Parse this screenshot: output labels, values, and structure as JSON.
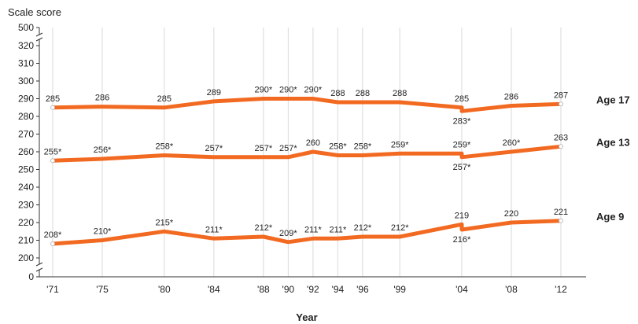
{
  "chart_data": {
    "type": "line",
    "title": "",
    "ylabel": "Scale score",
    "xlabel": "Year",
    "grid": "vertical",
    "y_axis": {
      "ticks": [
        "0",
        "200",
        "210",
        "220",
        "230",
        "240",
        "250",
        "260",
        "270",
        "280",
        "290",
        "300",
        "310",
        "320",
        "500"
      ],
      "break": "between 0 and 200, and between 320 and 500",
      "range": [
        200,
        320
      ]
    },
    "categories": [
      "'71",
      "'75",
      "'80",
      "'84",
      "'88",
      "'90",
      "'92",
      "'94",
      "'96",
      "'99",
      "'04",
      "'08",
      "'12"
    ],
    "series": [
      {
        "name": "Age 17",
        "points": [
          {
            "x": 1971,
            "y": 285,
            "label": "285"
          },
          {
            "x": 1975,
            "y": 285.5,
            "label": "286"
          },
          {
            "x": 1980,
            "y": 285,
            "label": "285"
          },
          {
            "x": 1984,
            "y": 288.5,
            "label": "289"
          },
          {
            "x": 1988,
            "y": 290,
            "label": "290*"
          },
          {
            "x": 1990,
            "y": 290,
            "label": "290*"
          },
          {
            "x": 1992,
            "y": 290,
            "label": "290*"
          },
          {
            "x": 1994,
            "y": 288,
            "label": "288"
          },
          {
            "x": 1996,
            "y": 288,
            "label": "288"
          },
          {
            "x": 1999,
            "y": 288,
            "label": "288"
          },
          {
            "x": 2004,
            "y": 285,
            "label": "285"
          },
          {
            "x": 2004,
            "y": 283,
            "label": "283*"
          },
          {
            "x": 2008,
            "y": 286,
            "label": "286"
          },
          {
            "x": 2012,
            "y": 287,
            "label": "287"
          }
        ]
      },
      {
        "name": "Age 13",
        "points": [
          {
            "x": 1971,
            "y": 255,
            "label": "255*"
          },
          {
            "x": 1975,
            "y": 256,
            "label": "256*"
          },
          {
            "x": 1980,
            "y": 258,
            "label": "258*"
          },
          {
            "x": 1984,
            "y": 257,
            "label": "257*"
          },
          {
            "x": 1988,
            "y": 257,
            "label": "257*"
          },
          {
            "x": 1990,
            "y": 257,
            "label": "257*"
          },
          {
            "x": 1992,
            "y": 260,
            "label": "260"
          },
          {
            "x": 1994,
            "y": 258,
            "label": "258*"
          },
          {
            "x": 1996,
            "y": 258,
            "label": "258*"
          },
          {
            "x": 1999,
            "y": 259,
            "label": "259*"
          },
          {
            "x": 2004,
            "y": 259,
            "label": "259*"
          },
          {
            "x": 2004,
            "y": 257,
            "label": "257*"
          },
          {
            "x": 2008,
            "y": 260,
            "label": "260*"
          },
          {
            "x": 2012,
            "y": 263,
            "label": "263"
          }
        ]
      },
      {
        "name": "Age 9",
        "points": [
          {
            "x": 1971,
            "y": 208,
            "label": "208*"
          },
          {
            "x": 1975,
            "y": 210,
            "label": "210*"
          },
          {
            "x": 1980,
            "y": 215,
            "label": "215*"
          },
          {
            "x": 1984,
            "y": 211,
            "label": "211*"
          },
          {
            "x": 1988,
            "y": 212,
            "label": "212*"
          },
          {
            "x": 1990,
            "y": 209,
            "label": "209*"
          },
          {
            "x": 1992,
            "y": 211,
            "label": "211*"
          },
          {
            "x": 1994,
            "y": 211,
            "label": "211*"
          },
          {
            "x": 1996,
            "y": 212,
            "label": "212*"
          },
          {
            "x": 1999,
            "y": 212,
            "label": "212*"
          },
          {
            "x": 2004,
            "y": 219,
            "label": "219"
          },
          {
            "x": 2004,
            "y": 216,
            "label": "216*"
          },
          {
            "x": 2008,
            "y": 220,
            "label": "220"
          },
          {
            "x": 2012,
            "y": 221,
            "label": "221"
          }
        ]
      }
    ],
    "colors": {
      "line": "#f26a21",
      "grid": "#d9d9d9",
      "axis": "#333333",
      "text": "#222222"
    }
  }
}
